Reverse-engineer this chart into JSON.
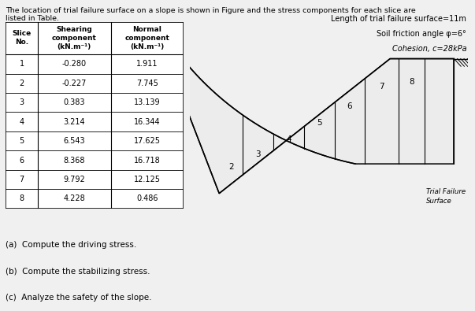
{
  "intro_text_line1": "The location of trial failure surface on a slope is shown in Figure and the stress components for each slice are",
  "intro_text_line2": "listed in Table.",
  "slice_nos": [
    1,
    2,
    3,
    4,
    5,
    6,
    7,
    8
  ],
  "shearing": [
    -0.28,
    -0.227,
    0.383,
    3.214,
    6.543,
    8.368,
    9.792,
    4.228
  ],
  "normal": [
    1.911,
    7.745,
    13.139,
    16.344,
    17.625,
    16.718,
    12.125,
    0.486
  ],
  "info_line1": "Length of trial failure surface=11m",
  "info_line2": "Soil friction angle φ=6°",
  "info_line3": "Cohesion, c=28kPa",
  "label_a": "(a)  Compute the driving stress.",
  "label_b": "(b)  Compute the stabilizing stress.",
  "label_c": "(c)  Analyze the safety of the slope.",
  "trial_failure_label": "Trial Failure\nSurface",
  "bg_color": "#f0f0f0",
  "text_color": "#000000",
  "slice_labels": [
    "2",
    "3",
    "4",
    "5",
    "6",
    "7",
    "8"
  ]
}
